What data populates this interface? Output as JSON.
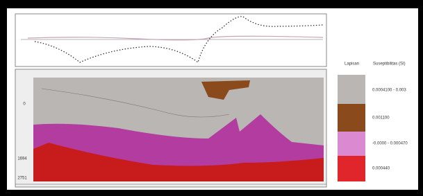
{
  "legend": {
    "headers": [
      "Lapisan",
      "Suseptibilitas (SI)"
    ],
    "items": [
      "0.0004100 - 0.003",
      "0.001100",
      "-0.0000 - 0.000470",
      "0.000440"
    ]
  },
  "depth_labels": [
    "0",
    "1694",
    "2751"
  ]
}
